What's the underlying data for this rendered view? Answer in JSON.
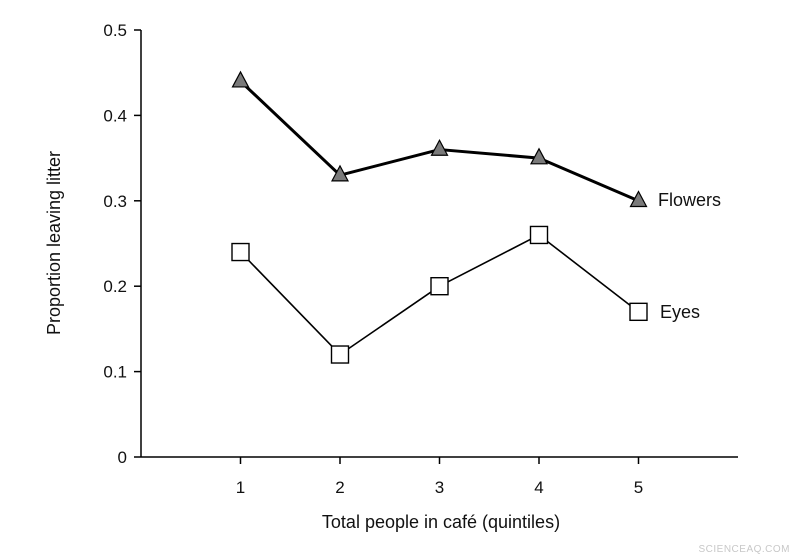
{
  "chart_data": {
    "type": "line",
    "title": "",
    "xlabel": "Total people in café (quintiles)",
    "ylabel": "Proportion leaving litter",
    "x": [
      1,
      2,
      3,
      4,
      5
    ],
    "xticks": [
      "1",
      "2",
      "3",
      "4",
      "5"
    ],
    "yticks": [
      "0",
      "0.1",
      "0.2",
      "0.3",
      "0.4",
      "0.5"
    ],
    "xlim": [
      0,
      6
    ],
    "ylim": [
      0,
      0.5
    ],
    "grid": false,
    "series": [
      {
        "name": "Flowers",
        "values": [
          0.44,
          0.33,
          0.36,
          0.35,
          0.3
        ],
        "marker": "triangle",
        "color": "#000000",
        "marker_fill": "#7a7a7a"
      },
      {
        "name": "Eyes",
        "values": [
          0.24,
          0.12,
          0.2,
          0.26,
          0.17
        ],
        "marker": "square",
        "color": "#000000",
        "marker_fill": "#ffffff"
      }
    ]
  },
  "watermark": "SCIENCEAQ.COM"
}
